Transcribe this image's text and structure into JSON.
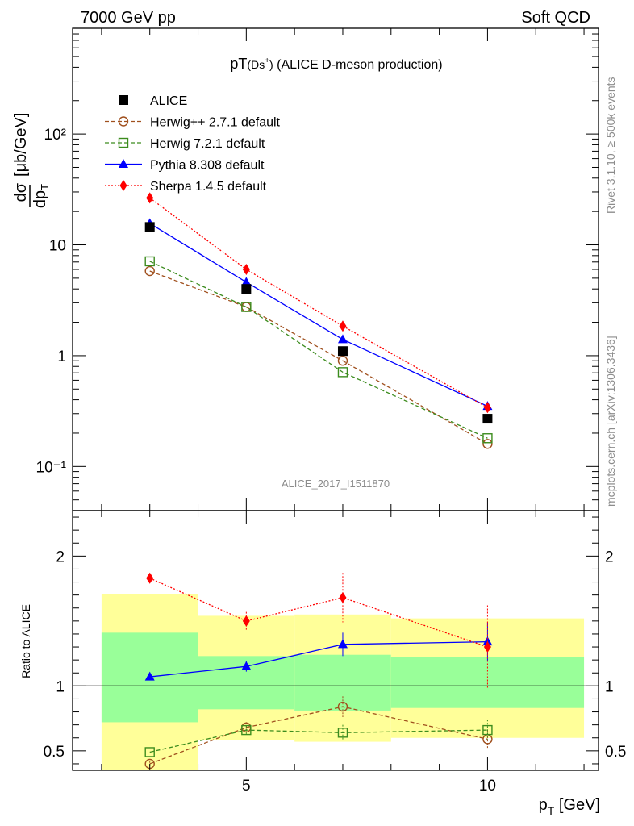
{
  "header": {
    "left": "7000 GeV pp",
    "right": "Soft QCD"
  },
  "title": {
    "main": "pT",
    "sub": "(Ds",
    "sup": "+",
    "close": ")",
    "rest": " (ALICE D-meson production)"
  },
  "side_labels": {
    "rivet": "Rivet 3.1.10, ≥ 500k events",
    "mcplots": "mcplots.cern.ch [arXiv:1306.3436]"
  },
  "watermark": "ALICE_2017_I1511870",
  "colors": {
    "ALICE": "#000000",
    "Herwig++": "#a0501e",
    "Herwig7": "#3c8c1e",
    "Pythia": "#0000ff",
    "Sherpa": "#ff0000",
    "band_inner": "#99ff99",
    "band_outer": "#ffff99"
  },
  "chart_data": [
    {
      "type": "scatter",
      "panel": "main",
      "yscale": "log",
      "ylabel": "dσ/dp_T [μb/GeV]",
      "xlim": [
        1.4,
        12.3
      ],
      "ylim": [
        0.04,
        900
      ],
      "y_tick_labels": [
        "10⁻¹",
        "1",
        "10",
        "10²"
      ],
      "legend_position": "top-left",
      "series": [
        {
          "name": "ALICE",
          "marker": "square-filled",
          "x": [
            3,
            5,
            7,
            10
          ],
          "y": [
            14.5,
            4.0,
            1.1,
            0.27
          ]
        },
        {
          "name": "Herwig++ 2.7.1 default",
          "marker": "circle-open",
          "line": "dashed",
          "x": [
            3,
            5,
            7,
            10
          ],
          "y": [
            5.8,
            2.75,
            0.9,
            0.16
          ]
        },
        {
          "name": "Herwig 7.2.1 default",
          "marker": "square-open",
          "line": "dashed",
          "x": [
            3,
            5,
            7,
            10
          ],
          "y": [
            7.1,
            2.75,
            0.71,
            0.18
          ]
        },
        {
          "name": "Pythia 8.308 default",
          "marker": "triangle-filled",
          "line": "solid",
          "x": [
            3,
            5,
            7,
            10
          ],
          "y": [
            15.6,
            4.6,
            1.4,
            0.35
          ]
        },
        {
          "name": "Sherpa 1.4.5 default",
          "marker": "diamond-filled",
          "line": "dotted",
          "x": [
            3,
            5,
            7,
            10
          ],
          "y": [
            26.5,
            6.0,
            1.85,
            0.34
          ]
        }
      ]
    },
    {
      "type": "scatter",
      "panel": "ratio",
      "ylabel": "Ratio to ALICE",
      "xlabel": "p_T [GeV]",
      "xlim": [
        1.4,
        12.3
      ],
      "ylim": [
        0.35,
        2.35
      ],
      "x_tick_labels": [
        "5",
        "10"
      ],
      "y_tick_labels": [
        "0.5",
        "1",
        "2"
      ],
      "bands": [
        {
          "x0": 2,
          "x1": 4,
          "inner": [
            0.72,
            1.41
          ],
          "outer": [
            0.35,
            1.71
          ]
        },
        {
          "x0": 4,
          "x1": 6,
          "inner": [
            0.82,
            1.23
          ],
          "outer": [
            0.58,
            1.54
          ]
        },
        {
          "x0": 6,
          "x1": 8,
          "inner": [
            0.81,
            1.24
          ],
          "outer": [
            0.57,
            1.55
          ]
        },
        {
          "x0": 8,
          "x1": 12,
          "inner": [
            0.83,
            1.22
          ],
          "outer": [
            0.6,
            1.52
          ]
        }
      ],
      "series": [
        {
          "name": "Herwig++ 2.7.1 default",
          "marker": "circle-open",
          "line": "dashed",
          "x": [
            3,
            5,
            7,
            10
          ],
          "y": [
            0.4,
            0.68,
            0.84,
            0.59
          ],
          "yerr": [
            0.02,
            0.04,
            0.08,
            0.07
          ]
        },
        {
          "name": "Herwig 7.2.1 default",
          "marker": "square-open",
          "line": "dashed",
          "x": [
            3,
            5,
            7,
            10
          ],
          "y": [
            0.49,
            0.66,
            0.64,
            0.66
          ],
          "yerr": [
            0.01,
            0.03,
            0.06,
            0.08
          ]
        },
        {
          "name": "Pythia 8.308 default",
          "marker": "triangle-filled",
          "line": "solid",
          "x": [
            3,
            5,
            7,
            10
          ],
          "y": [
            1.07,
            1.15,
            1.32,
            1.34
          ],
          "yerr": [
            0.01,
            0.04,
            0.09,
            0.15
          ]
        },
        {
          "name": "Sherpa 1.4.5 default",
          "marker": "diamond-filled",
          "line": "dotted",
          "x": [
            3,
            5,
            7,
            10
          ],
          "y": [
            1.83,
            1.5,
            1.68,
            1.3
          ],
          "yerr": [
            0.02,
            0.07,
            0.19,
            0.32
          ]
        }
      ]
    }
  ]
}
